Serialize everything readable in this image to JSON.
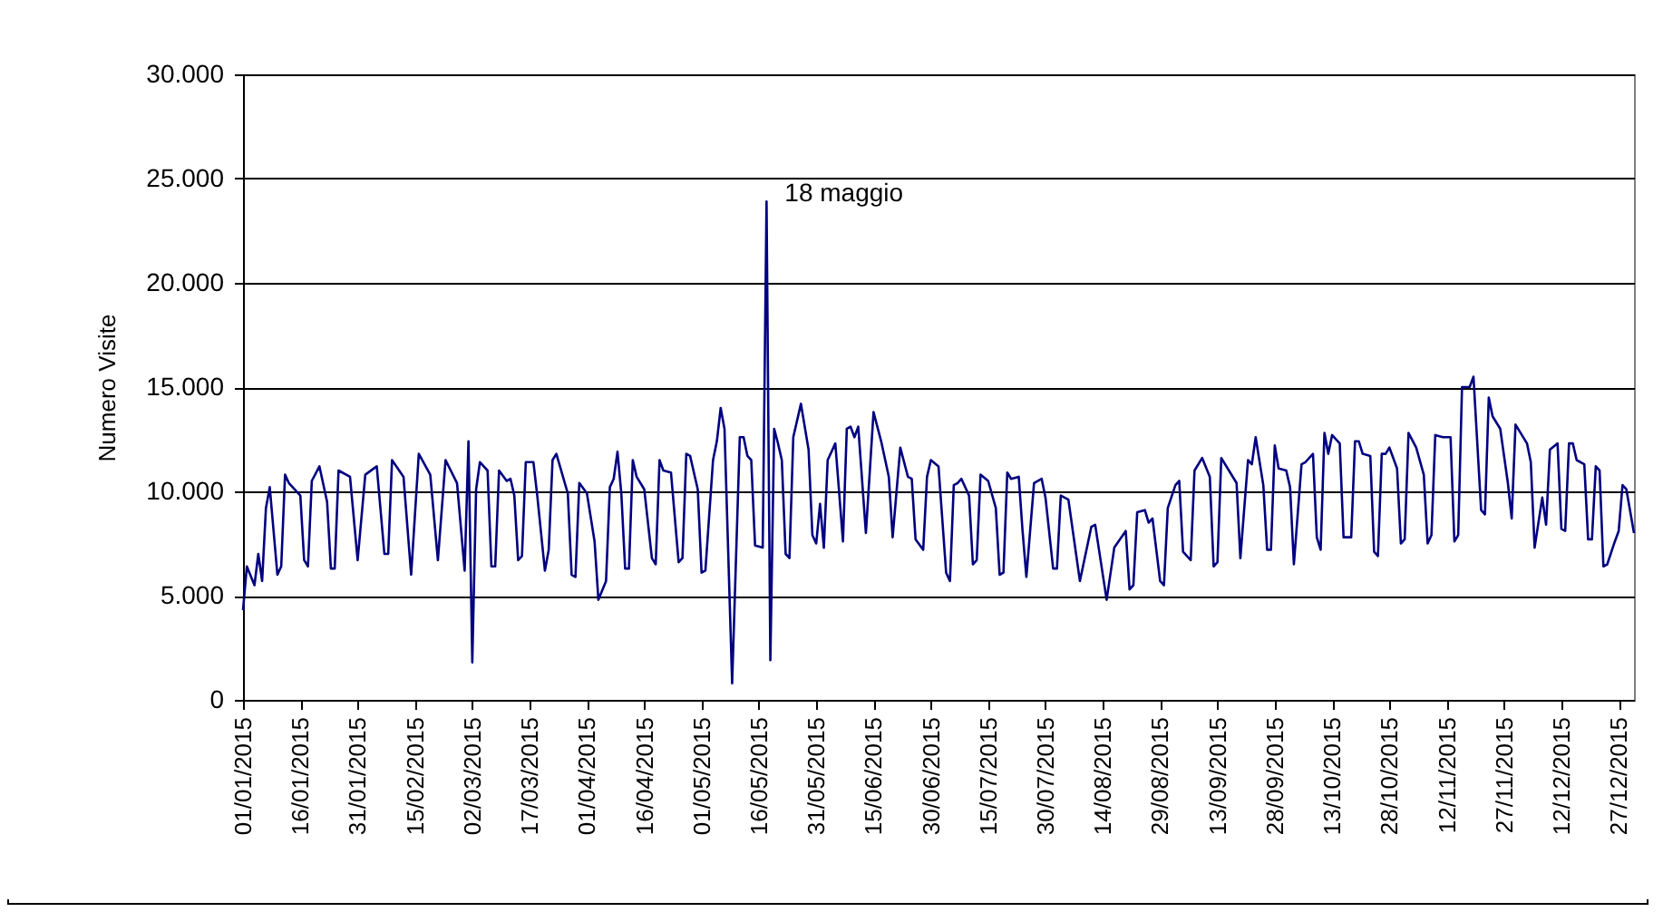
{
  "chart_data": {
    "type": "line",
    "ylabel": "Numero Visite",
    "x": [
      "2015-01-01",
      "2015-01-02",
      "2015-01-04",
      "2015-01-05",
      "2015-01-06",
      "2015-01-07",
      "2015-01-08",
      "2015-01-10",
      "2015-01-11",
      "2015-01-12",
      "2015-01-13",
      "2015-01-16",
      "2015-01-17",
      "2015-01-18",
      "2015-01-19",
      "2015-01-21",
      "2015-01-23",
      "2015-01-24",
      "2015-01-25",
      "2015-01-26",
      "2015-01-29",
      "2015-01-31",
      "2015-02-02",
      "2015-02-05",
      "2015-02-07",
      "2015-02-08",
      "2015-02-09",
      "2015-02-12",
      "2015-02-14",
      "2015-02-16",
      "2015-02-19",
      "2015-02-21",
      "2015-02-23",
      "2015-02-26",
      "2015-02-28",
      "2015-03-01",
      "2015-03-02",
      "2015-03-03",
      "2015-03-04",
      "2015-03-06",
      "2015-03-07",
      "2015-03-08",
      "2015-03-09",
      "2015-03-11",
      "2015-03-12",
      "2015-03-13",
      "2015-03-14",
      "2015-03-15",
      "2015-03-16",
      "2015-03-18",
      "2015-03-19",
      "2015-03-21",
      "2015-03-22",
      "2015-03-23",
      "2015-03-24",
      "2015-03-27",
      "2015-03-28",
      "2015-03-29",
      "2015-03-30",
      "2015-04-01",
      "2015-04-03",
      "2015-04-04",
      "2015-04-06",
      "2015-04-07",
      "2015-04-08",
      "2015-04-09",
      "2015-04-10",
      "2015-04-11",
      "2015-04-12",
      "2015-04-13",
      "2015-04-14",
      "2015-04-16",
      "2015-04-18",
      "2015-04-19",
      "2015-04-20",
      "2015-04-21",
      "2015-04-23",
      "2015-04-25",
      "2015-04-26",
      "2015-04-27",
      "2015-04-28",
      "2015-04-30",
      "2015-05-01",
      "2015-05-02",
      "2015-05-04",
      "2015-05-05",
      "2015-05-06",
      "2015-05-07",
      "2015-05-09",
      "2015-05-11",
      "2015-05-12",
      "2015-05-13",
      "2015-05-14",
      "2015-05-15",
      "2015-05-17",
      "2015-05-18",
      "2015-05-19",
      "2015-05-20",
      "2015-05-21",
      "2015-05-22",
      "2015-05-23",
      "2015-05-24",
      "2015-05-25",
      "2015-05-27",
      "2015-05-29",
      "2015-05-30",
      "2015-05-31",
      "2015-06-01",
      "2015-06-02",
      "2015-06-03",
      "2015-06-05",
      "2015-06-07",
      "2015-06-08",
      "2015-06-09",
      "2015-06-10",
      "2015-06-11",
      "2015-06-13",
      "2015-06-15",
      "2015-06-17",
      "2015-06-19",
      "2015-06-20",
      "2015-06-22",
      "2015-06-24",
      "2015-06-25",
      "2015-06-26",
      "2015-06-28",
      "2015-06-29",
      "2015-06-30",
      "2015-07-02",
      "2015-07-04",
      "2015-07-05",
      "2015-07-06",
      "2015-07-07",
      "2015-07-08",
      "2015-07-10",
      "2015-07-11",
      "2015-07-12",
      "2015-07-13",
      "2015-07-15",
      "2015-07-17",
      "2015-07-18",
      "2015-07-19",
      "2015-07-20",
      "2015-07-21",
      "2015-07-23",
      "2015-07-24",
      "2015-07-25",
      "2015-07-27",
      "2015-07-29",
      "2015-07-30",
      "2015-08-01",
      "2015-08-02",
      "2015-08-03",
      "2015-08-05",
      "2015-08-08",
      "2015-08-11",
      "2015-08-12",
      "2015-08-13",
      "2015-08-15",
      "2015-08-17",
      "2015-08-20",
      "2015-08-21",
      "2015-08-22",
      "2015-08-23",
      "2015-08-25",
      "2015-08-26",
      "2015-08-27",
      "2015-08-29",
      "2015-08-30",
      "2015-08-31",
      "2015-09-02",
      "2015-09-03",
      "2015-09-04",
      "2015-09-06",
      "2015-09-07",
      "2015-09-09",
      "2015-09-11",
      "2015-09-12",
      "2015-09-13",
      "2015-09-14",
      "2015-09-16",
      "2015-09-18",
      "2015-09-19",
      "2015-09-21",
      "2015-09-22",
      "2015-09-23",
      "2015-09-25",
      "2015-09-26",
      "2015-09-27",
      "2015-09-28",
      "2015-09-29",
      "2015-10-01",
      "2015-10-02",
      "2015-10-03",
      "2015-10-05",
      "2015-10-06",
      "2015-10-08",
      "2015-10-09",
      "2015-10-10",
      "2015-10-11",
      "2015-10-12",
      "2015-10-13",
      "2015-10-15",
      "2015-10-16",
      "2015-10-18",
      "2015-10-19",
      "2015-10-20",
      "2015-10-21",
      "2015-10-23",
      "2015-10-24",
      "2015-10-25",
      "2015-10-26",
      "2015-10-27",
      "2015-10-28",
      "2015-10-30",
      "2015-10-31",
      "2015-11-01",
      "2015-11-02",
      "2015-11-04",
      "2015-11-06",
      "2015-11-07",
      "2015-11-08",
      "2015-11-09",
      "2015-11-11",
      "2015-11-13",
      "2015-11-14",
      "2015-11-15",
      "2015-11-16",
      "2015-11-18",
      "2015-11-19",
      "2015-11-21",
      "2015-11-22",
      "2015-11-23",
      "2015-11-24",
      "2015-11-26",
      "2015-11-28",
      "2015-11-29",
      "2015-11-30",
      "2015-12-03",
      "2015-12-04",
      "2015-12-05",
      "2015-12-07",
      "2015-12-08",
      "2015-12-09",
      "2015-12-11",
      "2015-12-12",
      "2015-12-13",
      "2015-12-14",
      "2015-12-15",
      "2015-12-16",
      "2015-12-18",
      "2015-12-19",
      "2015-12-20",
      "2015-12-21",
      "2015-12-22",
      "2015-12-23",
      "2015-12-24",
      "2015-12-26",
      "2015-12-27",
      "2015-12-28",
      "2015-12-29",
      "2015-12-31"
    ],
    "series": [
      {
        "color": "#000080",
        "values": [
          4300,
          6400,
          5500,
          7000,
          5700,
          9200,
          10200,
          6000,
          6400,
          10800,
          10400,
          9800,
          6700,
          6400,
          10500,
          11200,
          9500,
          6300,
          6300,
          11000,
          10700,
          6700,
          10800,
          11200,
          7000,
          7000,
          11500,
          10700,
          6000,
          11800,
          10800,
          6700,
          11500,
          10400,
          6200,
          12400,
          1800,
          10100,
          11400,
          11000,
          6400,
          6400,
          11000,
          10500,
          10600,
          9800,
          6700,
          6900,
          11400,
          11400,
          9800,
          6200,
          7200,
          11500,
          11800,
          9900,
          6000,
          5900,
          10400,
          9900,
          7600,
          4800,
          5700,
          10200,
          10600,
          11900,
          9900,
          6300,
          6300,
          11500,
          10700,
          10100,
          6800,
          6500,
          11500,
          11000,
          10900,
          6600,
          6800,
          11800,
          11700,
          10100,
          6100,
          6200,
          11500,
          12400,
          14000,
          13000,
          800,
          12600,
          12600,
          11700,
          11500,
          7400,
          7300,
          23900,
          1900,
          13000,
          12300,
          11500,
          7000,
          6800,
          12600,
          14200,
          12000,
          7900,
          7500,
          9400,
          7300,
          11500,
          12300,
          7600,
          13000,
          13100,
          12600,
          13100,
          8000,
          13800,
          12400,
          10700,
          7800,
          12100,
          10700,
          10600,
          7700,
          7200,
          10700,
          11500,
          11200,
          6100,
          5700,
          10300,
          10400,
          10600,
          9800,
          6500,
          6700,
          10800,
          10500,
          9200,
          6000,
          6100,
          10900,
          10600,
          10700,
          8100,
          5900,
          10400,
          10600,
          9700,
          6300,
          6300,
          9800,
          9600,
          5700,
          8300,
          8400,
          7200,
          4800,
          7300,
          8100,
          5300,
          5500,
          9000,
          9100,
          8500,
          8700,
          5700,
          5500,
          9200,
          10300,
          10500,
          7100,
          6700,
          11000,
          11600,
          10700,
          6400,
          6600,
          11600,
          11000,
          10400,
          6800,
          11500,
          11300,
          12600,
          10300,
          7200,
          7200,
          12200,
          11100,
          11000,
          10200,
          6500,
          11300,
          11400,
          11800,
          7800,
          7200,
          12800,
          11800,
          12700,
          12300,
          7800,
          7800,
          12400,
          12400,
          11800,
          11700,
          7100,
          6900,
          11800,
          11800,
          12100,
          11100,
          7500,
          7700,
          12800,
          12100,
          10800,
          7500,
          7900,
          12700,
          12600,
          12600,
          7600,
          7900,
          15000,
          15000,
          15500,
          9100,
          8900,
          14500,
          13600,
          13000,
          10400,
          8700,
          13200,
          12300,
          11400,
          7300,
          9700,
          8400,
          12000,
          12300,
          8200,
          8100,
          12300,
          12300,
          11500,
          11300,
          7700,
          7700,
          11200,
          11000,
          6400,
          6500,
          7600,
          8100,
          10300,
          10100,
          8000
        ]
      }
    ],
    "xlim": [
      "2015-01-01",
      "2015-12-31"
    ],
    "xticks": [
      {
        "value": "2015-01-01",
        "label": "01/01/2015"
      },
      {
        "value": "2015-01-16",
        "label": "16/01/2015"
      },
      {
        "value": "2015-01-31",
        "label": "31/01/2015"
      },
      {
        "value": "2015-02-15",
        "label": "15/02/2015"
      },
      {
        "value": "2015-03-02",
        "label": "02/03/2015"
      },
      {
        "value": "2015-03-17",
        "label": "17/03/2015"
      },
      {
        "value": "2015-04-01",
        "label": "01/04/2015"
      },
      {
        "value": "2015-04-16",
        "label": "16/04/2015"
      },
      {
        "value": "2015-05-01",
        "label": "01/05/2015"
      },
      {
        "value": "2015-05-16",
        "label": "16/05/2015"
      },
      {
        "value": "2015-05-31",
        "label": "31/05/2015"
      },
      {
        "value": "2015-06-15",
        "label": "15/06/2015"
      },
      {
        "value": "2015-06-30",
        "label": "30/06/2015"
      },
      {
        "value": "2015-07-15",
        "label": "15/07/2015"
      },
      {
        "value": "2015-07-30",
        "label": "30/07/2015"
      },
      {
        "value": "2015-08-14",
        "label": "14/08/2015"
      },
      {
        "value": "2015-08-29",
        "label": "29/08/2015"
      },
      {
        "value": "2015-09-13",
        "label": "13/09/2015"
      },
      {
        "value": "2015-09-28",
        "label": "28/09/2015"
      },
      {
        "value": "2015-10-13",
        "label": "13/10/2015"
      },
      {
        "value": "2015-10-28",
        "label": "28/10/2015"
      },
      {
        "value": "2015-11-12",
        "label": "12/11/2015"
      },
      {
        "value": "2015-11-27",
        "label": "27/11/2015"
      },
      {
        "value": "2015-12-12",
        "label": "12/12/2015"
      },
      {
        "value": "2015-12-27",
        "label": "27/12/2015"
      }
    ],
    "ylim": [
      0,
      30000
    ],
    "yticks": [
      0,
      {
        "value": 5000,
        "label": "5.000"
      },
      {
        "value": 10000,
        "label": "10.000"
      },
      {
        "value": 15000,
        "label": "15.000"
      },
      {
        "value": 20000,
        "label": "20.000"
      },
      {
        "value": 25000,
        "label": "25.000"
      },
      {
        "value": 30000,
        "label": "30.000"
      }
    ],
    "grid": "y",
    "annotations": [
      {
        "text": "18 maggio",
        "x": "2015-05-18",
        "y": 23900
      }
    ]
  }
}
